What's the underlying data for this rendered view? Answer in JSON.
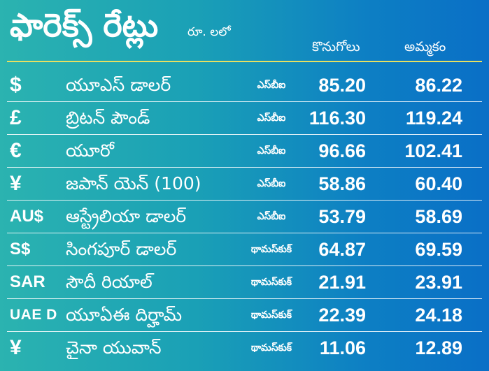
{
  "header": {
    "title": "ఫారెక్స్ రేట్లు",
    "unit": "రూ. లలో",
    "buy_label": "కొనుగోలు",
    "sell_label": "అమ్మకం"
  },
  "rates": [
    {
      "symbol": "$",
      "name": "యూఎస్ డాలర్",
      "source": "ఎస్‌బీఐ",
      "buy": "85.20",
      "sell": "86.22"
    },
    {
      "symbol": "£",
      "name": "బ్రిటన్ పౌండ్",
      "source": "ఎస్‌బీఐ",
      "buy": "116.30",
      "sell": "119.24"
    },
    {
      "symbol": "€",
      "name": "యూరో",
      "source": "ఎస్‌బీఐ",
      "buy": "96.66",
      "sell": "102.41"
    },
    {
      "symbol": "¥",
      "name": "జపాన్ యెన్ (100)",
      "source": "ఎస్‌బీఐ",
      "buy": "58.86",
      "sell": "60.40"
    },
    {
      "symbol": "AU$",
      "name": "ఆస్ట్రేలియా డాలర్",
      "source": "ఎస్‌బీఐ",
      "buy": "53.79",
      "sell": "58.69"
    },
    {
      "symbol": "S$",
      "name": "సింగపూర్ డాలర్",
      "source": "థామస్‌కుక్",
      "buy": "64.87",
      "sell": "69.59"
    },
    {
      "symbol": "SAR",
      "name": "సౌదీ రియాల్",
      "source": "థామస్‌కుక్",
      "buy": "21.91",
      "sell": "23.91"
    },
    {
      "symbol": "UAE D",
      "name": "యూఏఈ దిర్హామ్",
      "source": "థామస్‌కుక్",
      "buy": "22.39",
      "sell": "24.18"
    },
    {
      "symbol": "¥",
      "name": "చైనా యువాన్",
      "source": "థామస్‌కుక్",
      "buy": "11.06",
      "sell": "12.89"
    }
  ]
}
